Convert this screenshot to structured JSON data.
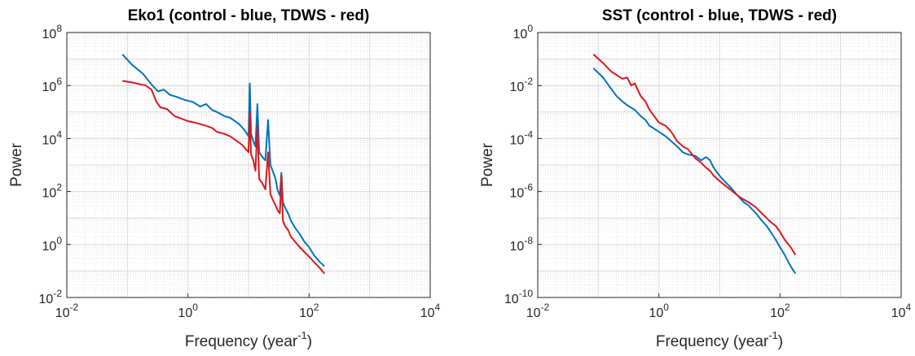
{
  "chart_data": [
    {
      "type": "line",
      "title": "Eko1 (control - blue, TDWS - red)",
      "xlabel": "Frequency (year",
      "xlabel_sup": "-1",
      "xlabel_end": ")",
      "ylabel": "Power",
      "x_scale": "log",
      "y_scale": "log",
      "xlim": [
        0.01,
        10000
      ],
      "ylim": [
        0.01,
        100000000
      ],
      "grid": true,
      "x_ticks": [
        {
          "base": "10",
          "exp": "-2",
          "value": 0.01
        },
        {
          "base": "10",
          "exp": "0",
          "value": 1
        },
        {
          "base": "10",
          "exp": "2",
          "value": 100
        },
        {
          "base": "10",
          "exp": "4",
          "value": 10000
        }
      ],
      "y_ticks": [
        {
          "base": "10",
          "exp": "-2",
          "value": 0.01
        },
        {
          "base": "10",
          "exp": "0",
          "value": 1
        },
        {
          "base": "10",
          "exp": "2",
          "value": 100
        },
        {
          "base": "10",
          "exp": "4",
          "value": 10000
        },
        {
          "base": "10",
          "exp": "6",
          "value": 1000000
        },
        {
          "base": "10",
          "exp": "8",
          "value": 100000000
        }
      ],
      "series": [
        {
          "color": "#0072BD",
          "points": [
            [
              0.083,
              15000000.0
            ],
            [
              0.12,
              6000000.0
            ],
            [
              0.18,
              2800000.0
            ],
            [
              0.25,
              1100000.0
            ],
            [
              0.32,
              600000.0
            ],
            [
              0.4,
              700000.0
            ],
            [
              0.5,
              450000.0
            ],
            [
              0.7,
              350000.0
            ],
            [
              0.9,
              280000.0
            ],
            [
              1.2,
              240000.0
            ],
            [
              1.6,
              160000.0
            ],
            [
              2.0,
              200000.0
            ],
            [
              2.5,
              120000.0
            ],
            [
              3,
              100000.0
            ],
            [
              4,
              70000.0
            ],
            [
              5,
              60000.0
            ],
            [
              6,
              45000.0
            ],
            [
              7,
              35000.0
            ],
            [
              8,
              25000.0
            ],
            [
              9,
              18000.0
            ],
            [
              10,
              12000.0
            ],
            [
              10.5,
              1200000.0
            ],
            [
              11,
              15000.0
            ],
            [
              12,
              8000.0
            ],
            [
              13,
              5000.0
            ],
            [
              14,
              200000.0
            ],
            [
              15,
              3000.0
            ],
            [
              17,
              2000.0
            ],
            [
              19,
              1500.0
            ],
            [
              21,
              50000.0
            ],
            [
              23,
              1000.0
            ],
            [
              25,
              600
            ],
            [
              28,
              300
            ],
            [
              30,
              120
            ],
            [
              33,
              70
            ],
            [
              35,
              500
            ],
            [
              37,
              40
            ],
            [
              40,
              25
            ],
            [
              45,
              15
            ],
            [
              50,
              8
            ],
            [
              60,
              4
            ],
            [
              70,
              2.5
            ],
            [
              85,
              1.2
            ],
            [
              100,
              0.8
            ],
            [
              120,
              0.4
            ],
            [
              150,
              0.22
            ],
            [
              180,
              0.15
            ]
          ]
        },
        {
          "color": "#D7191C",
          "points": [
            [
              0.083,
              1500000.0
            ],
            [
              0.12,
              1300000.0
            ],
            [
              0.2,
              1000000.0
            ],
            [
              0.25,
              700000.0
            ],
            [
              0.3,
              250000.0
            ],
            [
              0.35,
              150000.0
            ],
            [
              0.45,
              130000.0
            ],
            [
              0.6,
              70000.0
            ],
            [
              0.8,
              55000.0
            ],
            [
              1.0,
              45000.0
            ],
            [
              1.3,
              40000.0
            ],
            [
              1.6,
              35000.0
            ],
            [
              2.0,
              30000.0
            ],
            [
              2.5,
              25000.0
            ],
            [
              3,
              18000.0
            ],
            [
              4,
              15000.0
            ],
            [
              5,
              12000.0
            ],
            [
              6,
              9000.0
            ],
            [
              7,
              7000.0
            ],
            [
              8,
              5500.0
            ],
            [
              9,
              4000.0
            ],
            [
              10,
              3000.0
            ],
            [
              10.5,
              100000.0
            ],
            [
              11,
              2500.0
            ],
            [
              12,
              1500.0
            ],
            [
              13,
              600
            ],
            [
              14,
              30000.0
            ],
            [
              15,
              300
            ],
            [
              17,
              200
            ],
            [
              19,
              120
            ],
            [
              21,
              3000.0
            ],
            [
              23,
              80
            ],
            [
              25,
              50
            ],
            [
              28,
              30
            ],
            [
              30,
              20
            ],
            [
              33,
              15
            ],
            [
              35,
              400
            ],
            [
              37,
              8
            ],
            [
              40,
              5
            ],
            [
              45,
              3.5
            ],
            [
              50,
              2
            ],
            [
              60,
              1.2
            ],
            [
              70,
              0.8
            ],
            [
              85,
              0.5
            ],
            [
              100,
              0.35
            ],
            [
              120,
              0.22
            ],
            [
              150,
              0.13
            ],
            [
              180,
              0.08
            ]
          ]
        }
      ]
    },
    {
      "type": "line",
      "title": "SST (control - blue, TDWS - red)",
      "xlabel": "Frequency (year",
      "xlabel_sup": "-1",
      "xlabel_end": ")",
      "ylabel": "Power",
      "x_scale": "log",
      "y_scale": "log",
      "xlim": [
        0.01,
        10000
      ],
      "ylim": [
        1e-10,
        1
      ],
      "grid": true,
      "x_ticks": [
        {
          "base": "10",
          "exp": "-2",
          "value": 0.01
        },
        {
          "base": "10",
          "exp": "0",
          "value": 1
        },
        {
          "base": "10",
          "exp": "2",
          "value": 100
        },
        {
          "base": "10",
          "exp": "4",
          "value": 10000
        }
      ],
      "y_ticks": [
        {
          "base": "10",
          "exp": "-10",
          "value": 1e-10
        },
        {
          "base": "10",
          "exp": "-8",
          "value": 1e-08
        },
        {
          "base": "10",
          "exp": "-6",
          "value": 1e-06
        },
        {
          "base": "10",
          "exp": "-4",
          "value": 0.0001
        },
        {
          "base": "10",
          "exp": "-2",
          "value": 0.01
        },
        {
          "base": "10",
          "exp": "0",
          "value": 1
        }
      ],
      "series": [
        {
          "color": "#0072BD",
          "points": [
            [
              0.083,
              0.045
            ],
            [
              0.12,
              0.02
            ],
            [
              0.16,
              0.008
            ],
            [
              0.2,
              0.004
            ],
            [
              0.25,
              0.0025
            ],
            [
              0.3,
              0.0018
            ],
            [
              0.4,
              0.0012
            ],
            [
              0.5,
              0.0007
            ],
            [
              0.6,
              0.0005
            ],
            [
              0.7,
              0.0003
            ],
            [
              0.8,
              0.00025
            ],
            [
              1.0,
              0.00018
            ],
            [
              1.3,
              0.00012
            ],
            [
              1.6,
              8e-05
            ],
            [
              2.0,
              5e-05
            ],
            [
              2.5,
              3e-05
            ],
            [
              3,
              2.5e-05
            ],
            [
              4,
              2.2e-05
            ],
            [
              5,
              1.5e-05
            ],
            [
              6,
              2e-05
            ],
            [
              7,
              1.5e-05
            ],
            [
              8,
              8e-06
            ],
            [
              10,
              4e-06
            ],
            [
              12,
              2.5e-06
            ],
            [
              15,
              1.5e-06
            ],
            [
              20,
              7e-07
            ],
            [
              25,
              4e-07
            ],
            [
              30,
              3e-07
            ],
            [
              40,
              1.5e-07
            ],
            [
              50,
              8e-08
            ],
            [
              60,
              5e-08
            ],
            [
              70,
              3e-08
            ],
            [
              85,
              1.5e-08
            ],
            [
              100,
              8e-09
            ],
            [
              120,
              4e-09
            ],
            [
              150,
              1.5e-09
            ],
            [
              180,
              8e-10
            ]
          ]
        },
        {
          "color": "#D7191C",
          "points": [
            [
              0.083,
              0.15
            ],
            [
              0.12,
              0.07
            ],
            [
              0.16,
              0.035
            ],
            [
              0.2,
              0.025
            ],
            [
              0.25,
              0.018
            ],
            [
              0.3,
              0.02
            ],
            [
              0.35,
              0.01
            ],
            [
              0.4,
              0.012
            ],
            [
              0.5,
              0.004
            ],
            [
              0.6,
              0.0025
            ],
            [
              0.7,
              0.0012
            ],
            [
              0.8,
              0.0008
            ],
            [
              1.0,
              0.0004
            ],
            [
              1.3,
              0.0003
            ],
            [
              1.6,
              0.00018
            ],
            [
              2.0,
              8e-05
            ],
            [
              2.5,
              5e-05
            ],
            [
              3,
              4e-05
            ],
            [
              4,
              1.8e-05
            ],
            [
              5,
              1.2e-05
            ],
            [
              6,
              8e-06
            ],
            [
              7,
              6e-06
            ],
            [
              8,
              4e-06
            ],
            [
              10,
              2.5e-06
            ],
            [
              12,
              1.8e-06
            ],
            [
              15,
              1.2e-06
            ],
            [
              20,
              7e-07
            ],
            [
              25,
              5e-07
            ],
            [
              30,
              4e-07
            ],
            [
              40,
              2.5e-07
            ],
            [
              50,
              1.5e-07
            ],
            [
              60,
              1e-07
            ],
            [
              70,
              7e-08
            ],
            [
              85,
              5e-08
            ],
            [
              100,
              3e-08
            ],
            [
              120,
              1.5e-08
            ],
            [
              150,
              8e-09
            ],
            [
              180,
              4e-09
            ]
          ]
        }
      ]
    }
  ]
}
